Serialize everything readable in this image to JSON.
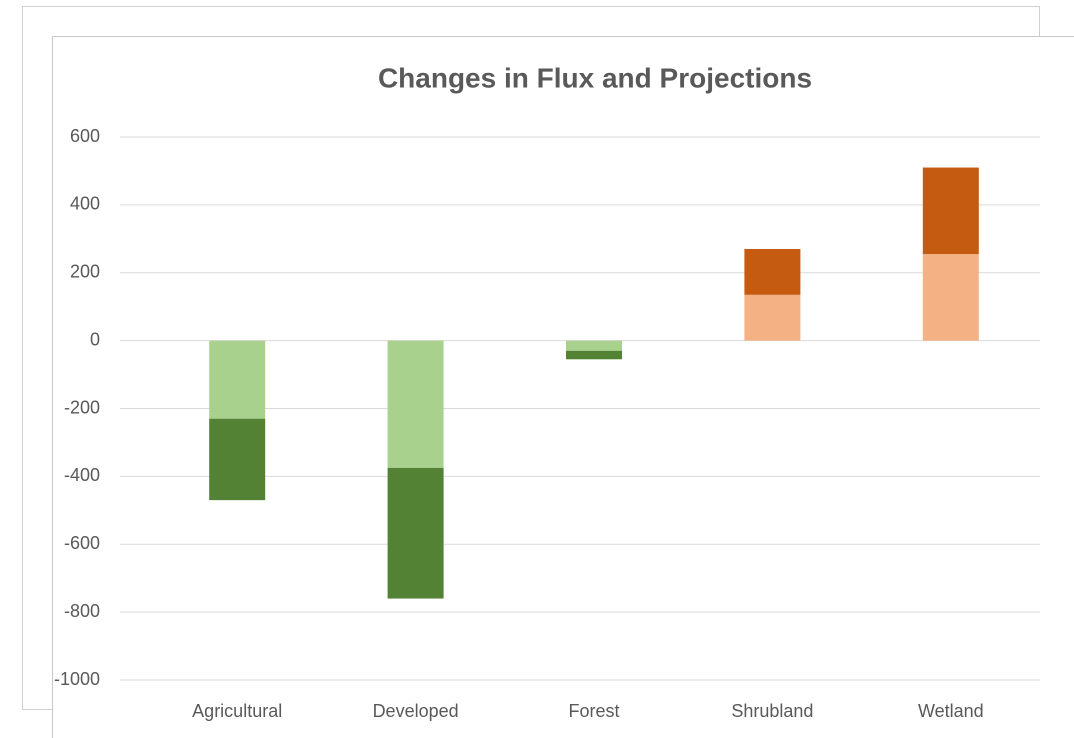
{
  "chart_data": {
    "type": "stacked_bar",
    "title": "Changes in Flux and Projections",
    "categories": [
      "Agricultural",
      "Developed",
      "Forest",
      "Shrubland",
      "Wetland"
    ],
    "series": [
      {
        "colors": [
          "#a9d18e",
          "#a9d18e",
          "#a9d18e",
          "#f4b183",
          "#f4b183"
        ],
        "values": [
          -230,
          -375,
          -30,
          135,
          255
        ]
      },
      {
        "colors": [
          "#548235",
          "#548235",
          "#548235",
          "#c55a11",
          "#c55a11"
        ],
        "values": [
          -240,
          -385,
          -25,
          135,
          255
        ]
      }
    ],
    "ylim": [
      -1000,
      600
    ],
    "yticks": [
      -1000,
      -800,
      -600,
      -400,
      -200,
      0,
      200,
      400,
      600
    ],
    "grid": true
  }
}
